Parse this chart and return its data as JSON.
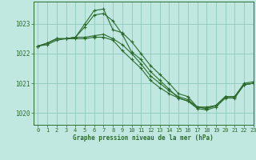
{
  "background_color": "#c0e8e0",
  "grid_color": "#90c8be",
  "line_color": "#2d6b2d",
  "title": "Graphe pression niveau de la mer (hPa)",
  "xlim": [
    -0.5,
    23
  ],
  "ylim": [
    1019.6,
    1023.75
  ],
  "yticks": [
    1020,
    1021,
    1022,
    1023
  ],
  "xticks": [
    0,
    1,
    2,
    3,
    4,
    5,
    6,
    7,
    8,
    9,
    10,
    11,
    12,
    13,
    14,
    15,
    16,
    17,
    18,
    19,
    20,
    21,
    22,
    23
  ],
  "lines": [
    {
      "x": [
        0,
        1,
        2,
        3,
        4,
        5,
        6,
        7,
        8,
        9,
        10,
        11,
        12,
        13,
        14,
        15,
        16,
        17,
        18,
        19,
        20,
        21,
        22,
        23
      ],
      "y": [
        1022.25,
        1022.35,
        1022.5,
        1022.5,
        1022.55,
        1023.0,
        1023.45,
        1023.5,
        1022.8,
        1022.7,
        1022.4,
        1022.0,
        1021.6,
        1021.3,
        1021.0,
        1020.65,
        1020.55,
        1020.2,
        1020.15,
        1020.25,
        1020.55,
        1020.55,
        1021.0,
        1021.05
      ]
    },
    {
      "x": [
        0,
        1,
        2,
        3,
        4,
        5,
        6,
        7,
        8,
        9,
        10,
        11,
        12,
        13,
        14,
        15,
        16,
        17,
        18,
        19,
        20,
        21,
        22,
        23
      ],
      "y": [
        1022.25,
        1022.35,
        1022.5,
        1022.5,
        1022.55,
        1022.9,
        1023.3,
        1023.35,
        1023.1,
        1022.65,
        1022.05,
        1021.8,
        1021.4,
        1021.1,
        1020.8,
        1020.5,
        1020.4,
        1020.15,
        1020.1,
        1020.2,
        1020.5,
        1020.5,
        1020.95,
        1021.0
      ]
    },
    {
      "x": [
        0,
        1,
        2,
        3,
        4,
        5,
        6,
        7,
        8,
        9,
        10,
        11,
        12,
        13,
        14,
        15,
        16,
        17,
        18,
        19,
        20,
        21,
        22,
        23
      ],
      "y": [
        1022.25,
        1022.35,
        1022.5,
        1022.5,
        1022.55,
        1022.55,
        1022.6,
        1022.65,
        1022.5,
        1022.3,
        1022.0,
        1021.65,
        1021.25,
        1021.0,
        1020.75,
        1020.55,
        1020.45,
        1020.2,
        1020.2,
        1020.25,
        1020.55,
        1020.55,
        1020.95,
        1021.0
      ]
    },
    {
      "x": [
        0,
        1,
        2,
        3,
        4,
        5,
        6,
        7,
        8,
        9,
        10,
        11,
        12,
        13,
        14,
        15,
        16,
        17,
        18,
        19,
        20,
        21,
        22,
        23
      ],
      "y": [
        1022.25,
        1022.3,
        1022.45,
        1022.5,
        1022.5,
        1022.5,
        1022.55,
        1022.55,
        1022.45,
        1022.1,
        1021.8,
        1021.5,
        1021.1,
        1020.85,
        1020.65,
        1020.5,
        1020.4,
        1020.2,
        1020.15,
        1020.25,
        1020.55,
        1020.55,
        1020.95,
        1021.0
      ]
    }
  ]
}
